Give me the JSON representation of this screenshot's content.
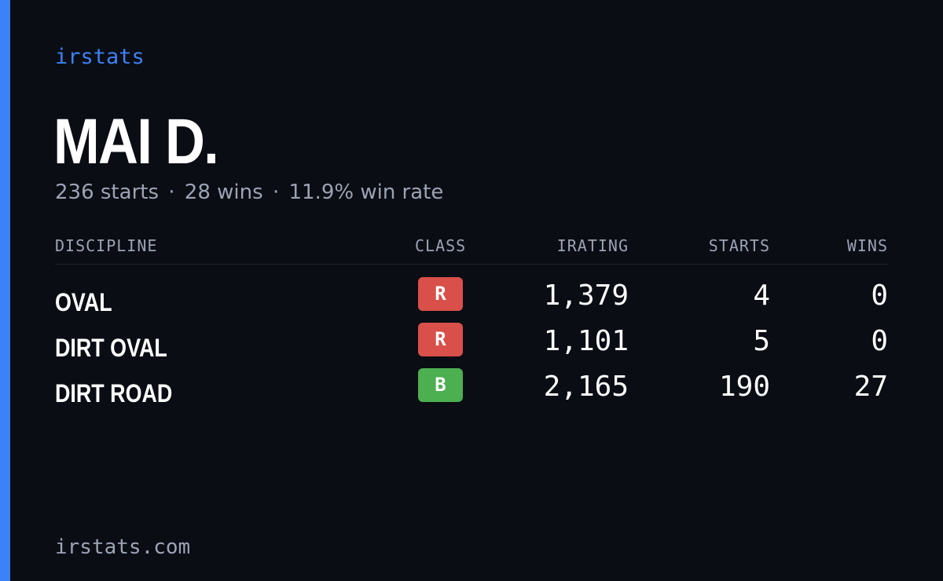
{
  "brand": "irstats",
  "driver": {
    "name": "MAI D."
  },
  "summary": {
    "starts_text": "236 starts",
    "wins_text": "28 wins",
    "win_rate_text": "11.9% win rate",
    "separator": "·"
  },
  "table": {
    "headers": {
      "discipline": "DISCIPLINE",
      "class": "CLASS",
      "irating": "IRATING",
      "starts": "STARTS",
      "wins": "WINS"
    },
    "rows": [
      {
        "discipline": "OVAL",
        "class": "R",
        "class_color": "#d94f4a",
        "irating": "1,379",
        "starts": "4",
        "wins": "0"
      },
      {
        "discipline": "DIRT OVAL",
        "class": "R",
        "class_color": "#d94f4a",
        "irating": "1,101",
        "starts": "5",
        "wins": "0"
      },
      {
        "discipline": "DIRT ROAD",
        "class": "B",
        "class_color": "#4caf50",
        "irating": "2,165",
        "starts": "190",
        "wins": "27"
      }
    ]
  },
  "footer": {
    "site": "irstats.com"
  },
  "colors": {
    "background": "#0a0d14",
    "accent": "#3b82f6",
    "muted_text": "#9ca3b4"
  }
}
